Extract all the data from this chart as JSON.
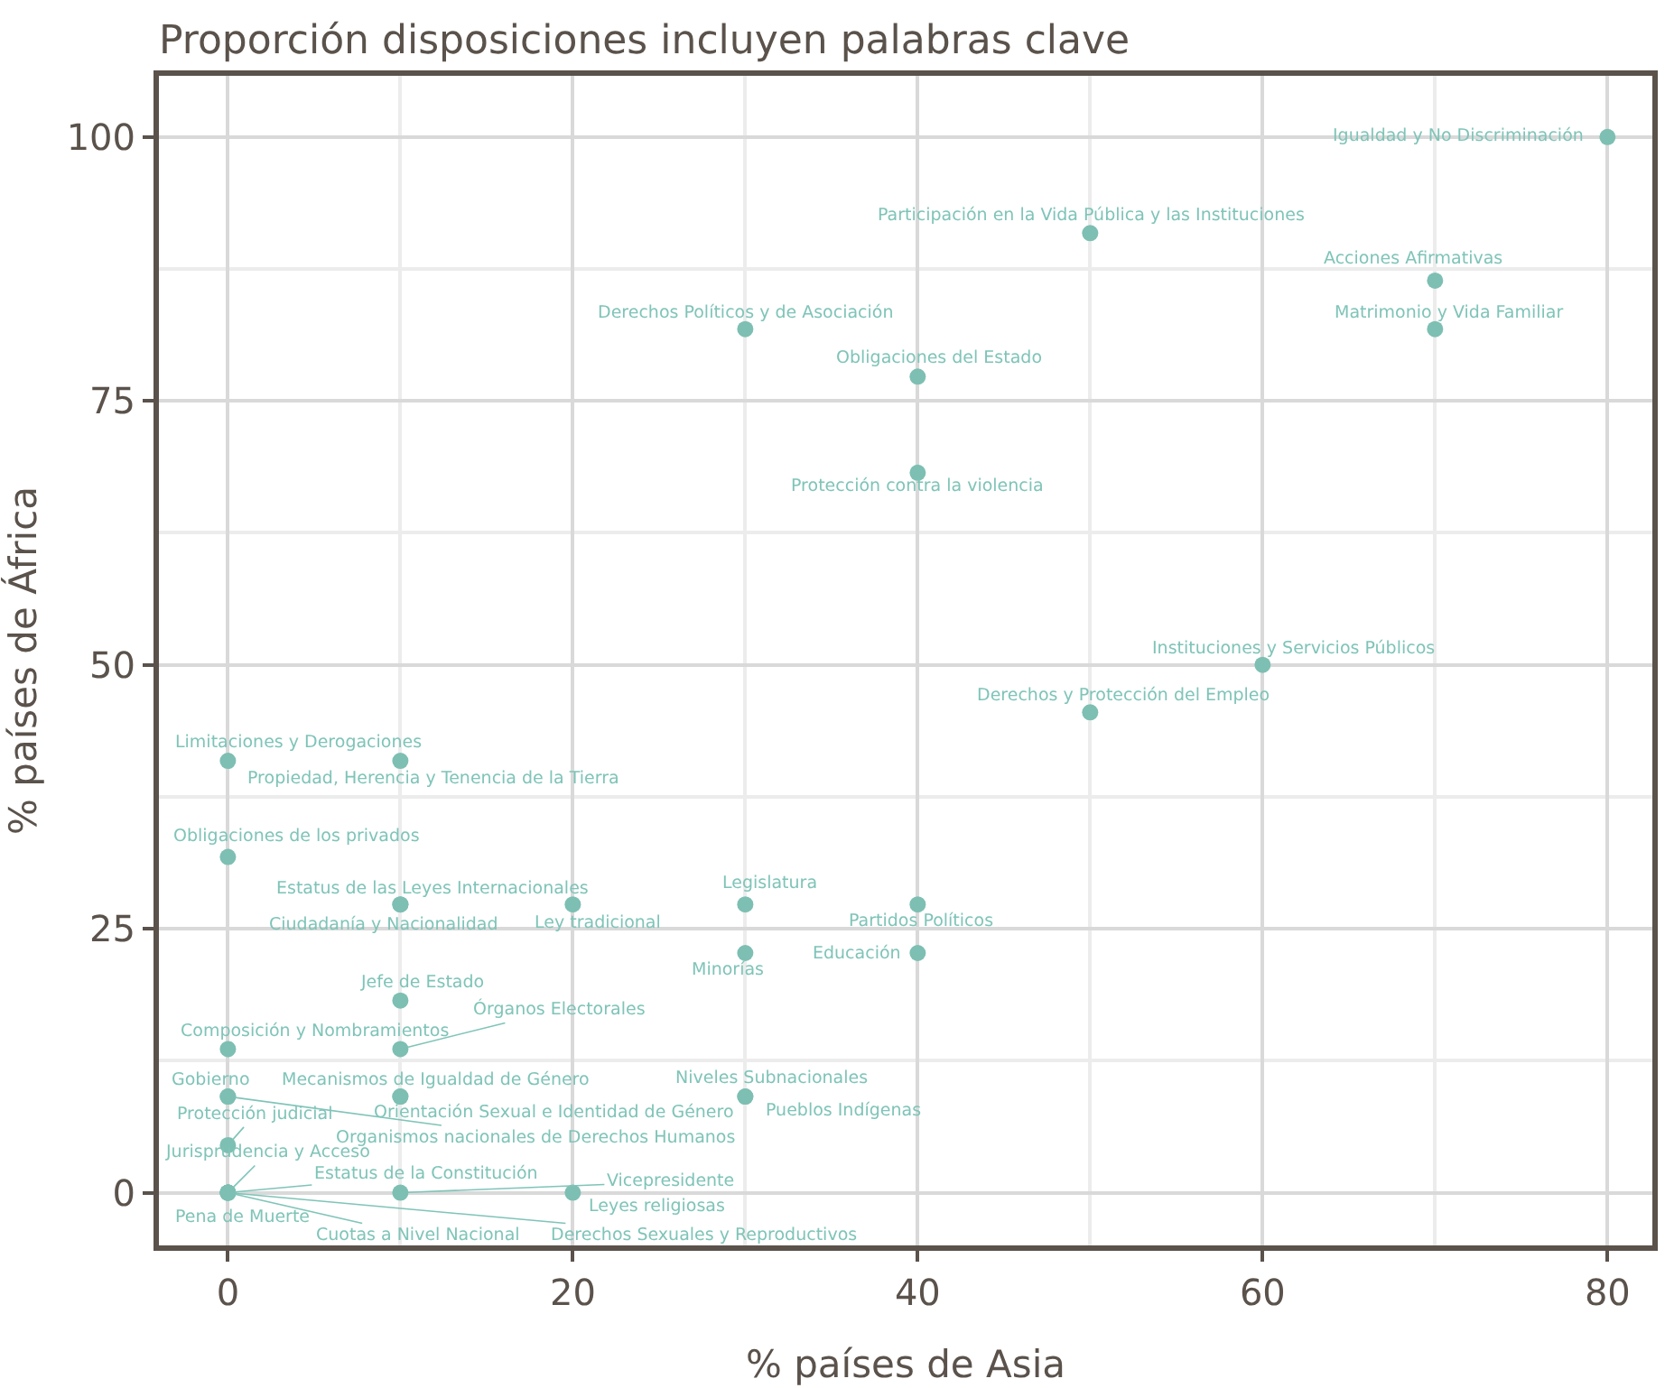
{
  "chart_data": {
    "type": "scatter",
    "title": "Proporción disposiciones incluyen palabras clave",
    "xlabel": "% países de Asia",
    "ylabel": "% países de África",
    "x": [
      80,
      50,
      30,
      70,
      70,
      40,
      40,
      60,
      50,
      0,
      10,
      0,
      10,
      10,
      20,
      30,
      40,
      30,
      40,
      10,
      0,
      10,
      10,
      10,
      30,
      30,
      0,
      0,
      0,
      0,
      0,
      0,
      0,
      0,
      10,
      20
    ],
    "series": [
      {
        "color": "#7dbfb3",
        "values": [
          100,
          90.9,
          81.8,
          86.4,
          81.8,
          77.3,
          68.2,
          50,
          45.5,
          40.9,
          40.9,
          31.8,
          27.3,
          27.3,
          27.3,
          27.3,
          27.3,
          22.7,
          22.7,
          18.2,
          13.6,
          13.6,
          9.1,
          9.1,
          9.1,
          9.1,
          9.1,
          9.1,
          4.5,
          0,
          0,
          0,
          0,
          0,
          0,
          0
        ],
        "value_labels": [
          "Igualdad y No Discriminación",
          "Participación en la Vida Pública y las Instituciones",
          "Derechos Políticos y de Asociación",
          "Acciones Afirmativas",
          "Matrimonio y Vida Familiar",
          "Obligaciones del Estado",
          "Protección contra la violencia",
          "Instituciones y Servicios Públicos",
          "Derechos y Protección del Empleo",
          "Limitaciones y Derogaciones",
          "Propiedad, Herencia y Tenencia de la Tierra",
          "Obligaciones de los privados",
          "Estatus de las Leyes Internacionales",
          "Ciudadanía y Nacionalidad",
          "Ley tradicional",
          "Legislatura",
          "Partidos Políticos",
          "Minorías",
          "Educación",
          "Jefe de Estado",
          "Composición y Nombramientos",
          "Órganos Electorales",
          "Mecanismos de Igualdad de Género",
          "Orientación Sexual e Identidad de Género",
          "Niveles Subnacionales",
          "Pueblos Indígenas",
          "Gobierno",
          "Organismos nacionales de Derechos Humanos",
          "Protección judicial",
          "Jurisprudencia y Acceso",
          "Estatus de la Constitución",
          "Pena de Muerte",
          "Cuotas a Nivel Nacional",
          "Derechos Sexuales y Reproductivos",
          "Vicepresidente",
          "Leyes religiosas"
        ]
      }
    ],
    "xlim": [
      -4,
      82.6
    ],
    "ylim": [
      -5,
      105.8
    ],
    "xticks": [
      0,
      20,
      40,
      60,
      80
    ],
    "yticks": [
      0,
      25,
      50,
      75,
      100
    ],
    "grid": true,
    "marker": "circle"
  }
}
